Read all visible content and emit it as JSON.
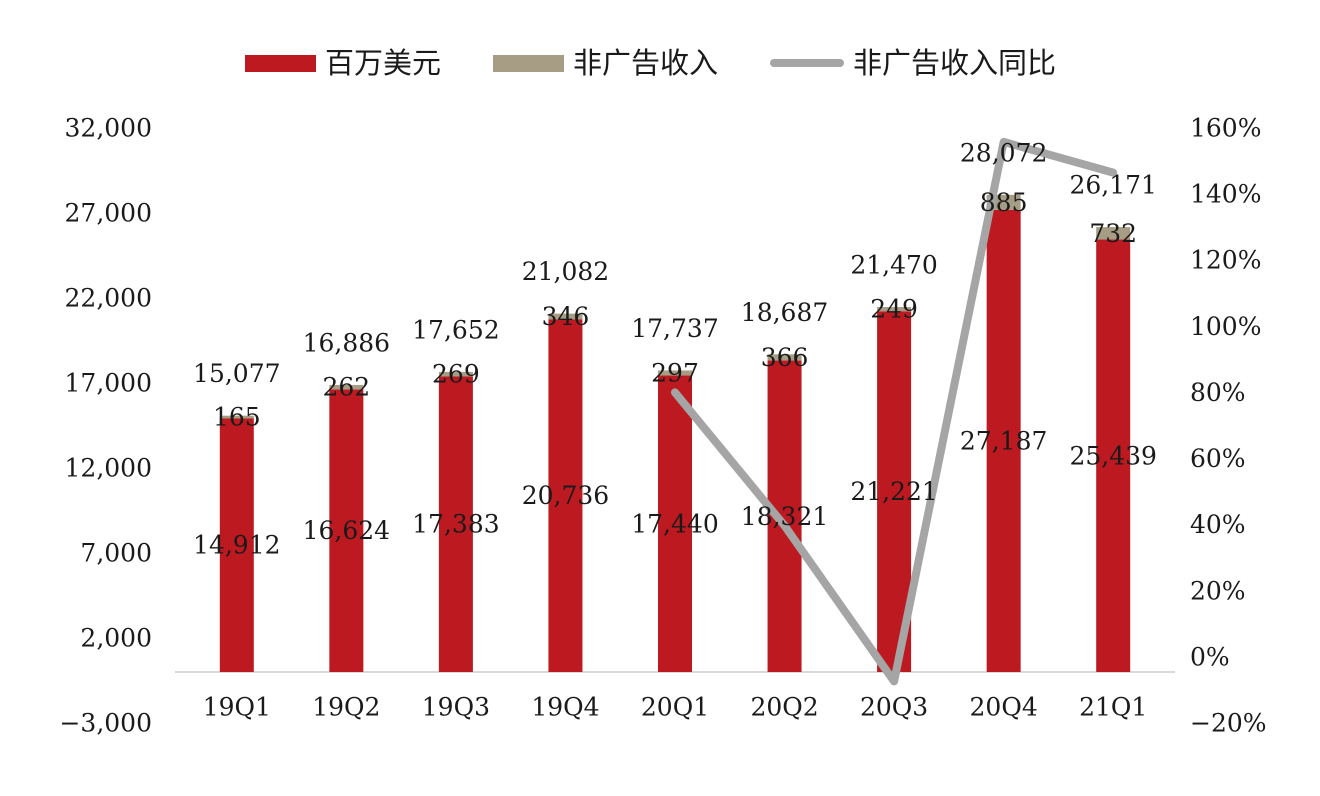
{
  "chart_data": {
    "type": "combo_bar_line",
    "title": "",
    "legend_position": "top",
    "grid": false,
    "categories": [
      "19Q1",
      "19Q2",
      "19Q3",
      "19Q4",
      "20Q1",
      "20Q2",
      "20Q3",
      "20Q4",
      "21Q1"
    ],
    "series": [
      {
        "name": "百万美元",
        "type": "bar",
        "stack": "revenue",
        "axis": "left",
        "color": "#BC1A20",
        "values": [
          14912,
          16624,
          17383,
          20736,
          17440,
          18321,
          21221,
          27187,
          25439
        ],
        "labels": [
          "14,912",
          "16,624",
          "17,383",
          "20,736",
          "17,440",
          "18,321",
          "21,221",
          "27,187",
          "25,439"
        ]
      },
      {
        "name": "非广告收入",
        "type": "bar",
        "stack": "revenue",
        "axis": "left",
        "color": "#A69D84",
        "values": [
          165,
          262,
          269,
          346,
          297,
          366,
          249,
          885,
          732
        ],
        "labels": [
          "165",
          "262",
          "269",
          "346",
          "297",
          "366",
          "249",
          "885",
          "732"
        ]
      },
      {
        "name": "非广告收入同比",
        "type": "line",
        "axis": "right",
        "color": "#A5A5A5",
        "values_percent": [
          null,
          null,
          null,
          null,
          80.0,
          39.7,
          -7.4,
          155.8,
          146.5
        ]
      }
    ],
    "stack_total_labels": [
      "15,077",
      "16,886",
      "17,652",
      "21,082",
      "17,737",
      "18,687",
      "21,470",
      "28,072",
      "26,171"
    ],
    "stack_totals": [
      15077,
      16886,
      17652,
      21082,
      17737,
      18687,
      21470,
      28072,
      26171
    ],
    "left_axis": {
      "min": -3000,
      "max": 32000,
      "step": 5000,
      "tick_labels": [
        "32,000",
        "27,000",
        "22,000",
        "17,000",
        "12,000",
        "7,000",
        "2,000",
        "−3,000"
      ]
    },
    "right_axis": {
      "min": -20,
      "max": 160,
      "step": 20,
      "tick_labels": [
        "160%",
        "140%",
        "120%",
        "100%",
        "80%",
        "60%",
        "40%",
        "20%",
        "0%",
        "−20%"
      ]
    },
    "axis_line_color": "#D9D9D9",
    "text_color": "#1a1a1a"
  }
}
